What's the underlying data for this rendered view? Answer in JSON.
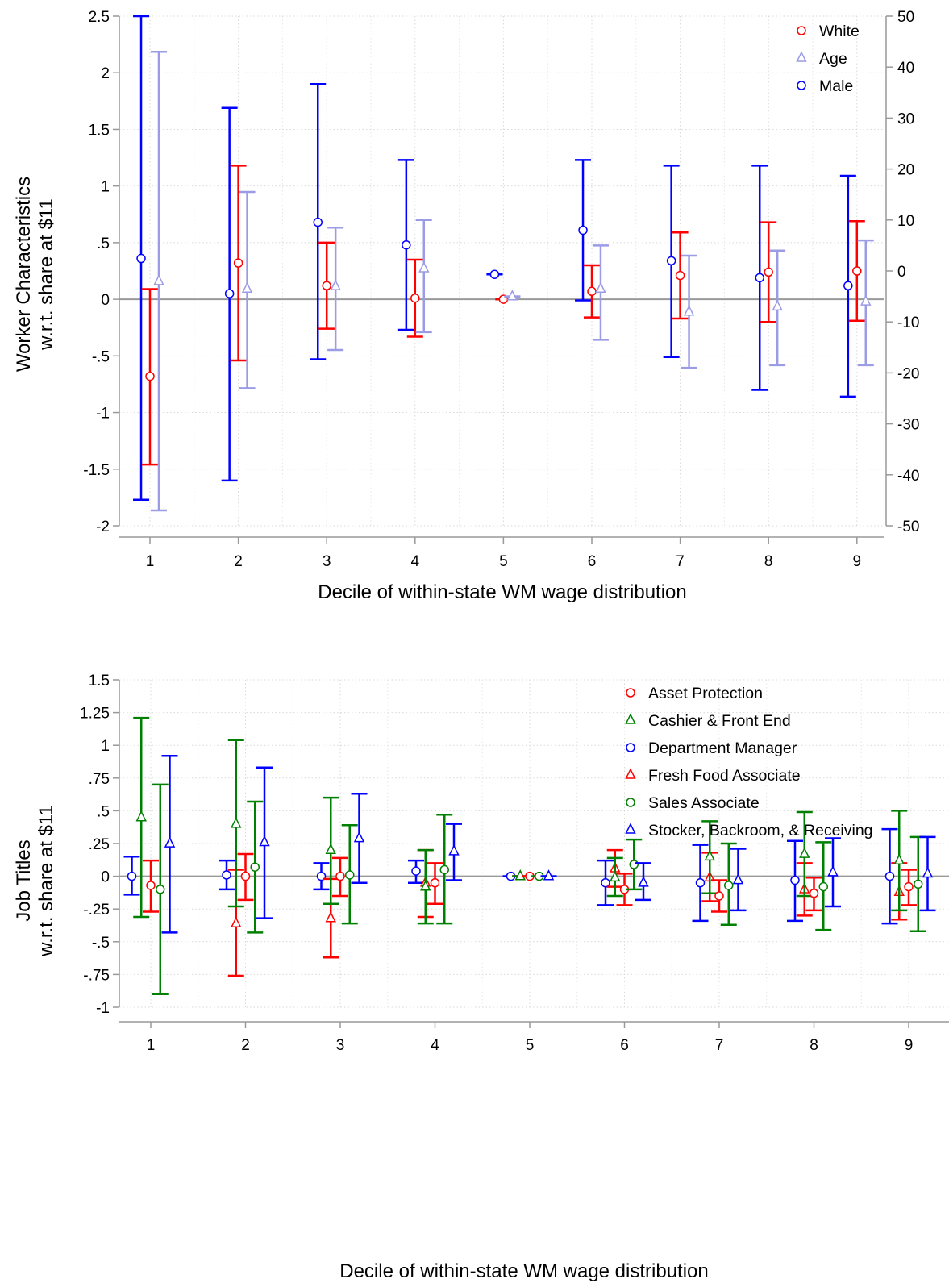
{
  "chart_data": [
    {
      "type": "scatter",
      "subtype": "coefficient plot with confidence intervals",
      "xlabel": "Decile of within-state WM wage distribution",
      "ylabel": "Worker Characteristics",
      "ylabel2": "w.r.t. share at $11",
      "x_ticks": [
        "1",
        "2",
        "3",
        "4",
        "5",
        "6",
        "7",
        "8",
        "9"
      ],
      "ylim": [
        -2,
        2.5
      ],
      "y_ticks": [
        2.5,
        2,
        1.5,
        1,
        0.5,
        0,
        -0.5,
        -1,
        -1.5,
        -2
      ],
      "y_tick_labels": [
        "2.5",
        "2",
        "1.5",
        "1",
        ".5",
        "0",
        "-.5",
        "-1",
        "-1.5",
        "-2"
      ],
      "y2lim": [
        -50,
        50
      ],
      "y2_ticks": [
        50,
        40,
        30,
        20,
        10,
        0,
        -10,
        -20,
        -30,
        -40,
        -50
      ],
      "y2_tick_labels": [
        "50",
        "40",
        "30",
        "20",
        "10",
        "0",
        "-10",
        "-20",
        "-30",
        "-40",
        "-50"
      ],
      "grid": true,
      "zero_line": true,
      "legend_position": "top-right",
      "series": [
        {
          "name": "Male",
          "color": "#0000ff",
          "marker": "circle",
          "axis": "left",
          "offset": -0.1,
          "estimate": [
            0.36,
            0.05,
            0.68,
            0.48,
            0.22,
            0.61,
            0.34,
            0.19,
            0.12
          ],
          "ci_low": [
            -1.77,
            -1.6,
            -0.53,
            -0.27,
            0.22,
            -0.01,
            -0.51,
            -0.8,
            -0.86
          ],
          "ci_high": [
            2.5,
            1.69,
            1.9,
            1.23,
            0.22,
            1.23,
            1.18,
            1.18,
            1.09
          ]
        },
        {
          "name": "White",
          "color": "#ff0000",
          "marker": "circle",
          "axis": "left",
          "offset": 0,
          "estimate": [
            -0.68,
            0.32,
            0.12,
            0.01,
            0.0,
            0.07,
            0.21,
            0.24,
            0.25
          ],
          "ci_low": [
            -1.46,
            -0.54,
            -0.26,
            -0.33,
            0.0,
            -0.16,
            -0.17,
            -0.2,
            -0.19
          ],
          "ci_high": [
            0.09,
            1.18,
            0.5,
            0.35,
            0.0,
            0.3,
            0.59,
            0.68,
            0.69
          ]
        },
        {
          "name": "Age",
          "color": "#9b9be6",
          "marker": "triangle",
          "axis": "right",
          "offset": 0.1,
          "estimate": [
            -2,
            -3.5,
            -3,
            0.5,
            -5,
            -3.5,
            -8,
            -7,
            -6
          ],
          "ci_low": [
            -47,
            -23,
            -15.5,
            -12,
            -5,
            -13.5,
            -19,
            -18.5,
            -18.5
          ],
          "ci_high": [
            43,
            15.5,
            8.5,
            10,
            -5,
            5,
            3,
            4,
            6
          ]
        }
      ]
    },
    {
      "type": "scatter",
      "subtype": "coefficient plot with confidence intervals",
      "xlabel": "Decile of within-state WM wage distribution",
      "ylabel": "Job Titles",
      "ylabel2": "w.r.t. share at $11",
      "x_ticks": [
        "1",
        "2",
        "3",
        "4",
        "5",
        "6",
        "7",
        "8",
        "9"
      ],
      "ylim": [
        -1,
        1.5
      ],
      "y_ticks": [
        1.5,
        1.25,
        1,
        0.75,
        0.5,
        0.25,
        0,
        -0.25,
        -0.5,
        -0.75,
        -1
      ],
      "y_tick_labels": [
        "1.5",
        "1.25",
        "1",
        ".75",
        ".5",
        ".25",
        "0",
        "-.25",
        "-.5",
        "-.75",
        "-1"
      ],
      "grid": true,
      "zero_line": true,
      "legend_position": "top-right",
      "series": [
        {
          "name": "Department Manager",
          "color": "#0000ff",
          "marker": "circle",
          "offset": -0.2,
          "estimate": [
            0.0,
            0.01,
            0.0,
            0.04,
            0.0,
            -0.05,
            -0.05,
            -0.03,
            0.0
          ],
          "ci_low": [
            -0.14,
            -0.1,
            -0.1,
            -0.05,
            0.0,
            -0.22,
            -0.34,
            -0.34,
            -0.36
          ],
          "ci_high": [
            0.15,
            0.12,
            0.1,
            0.12,
            0.0,
            0.12,
            0.24,
            0.27,
            0.36
          ]
        },
        {
          "name": "Fresh Food Associate",
          "color": "#ff0000",
          "marker": "triangle",
          "offset": -0.1,
          "estimate": [
            null,
            -0.36,
            -0.32,
            -0.05,
            0.0,
            0.06,
            -0.01,
            -0.1,
            -0.12
          ],
          "ci_low": [
            null,
            -0.76,
            -0.62,
            -0.31,
            0.0,
            -0.08,
            -0.19,
            -0.3,
            -0.33
          ],
          "ci_high": [
            null,
            0.05,
            -0.02,
            0.2,
            0.0,
            0.2,
            0.18,
            0.1,
            0.1
          ]
        },
        {
          "name": "Cashier & Front End",
          "color": "#008000",
          "marker": "triangle",
          "offset": -0.1,
          "estimate": [
            0.45,
            0.4,
            0.2,
            -0.08,
            0.0,
            -0.01,
            0.15,
            0.17,
            0.12
          ],
          "ci_low": [
            -0.31,
            -0.23,
            -0.21,
            -0.36,
            0.0,
            -0.15,
            -0.13,
            -0.15,
            -0.26
          ],
          "ci_high": [
            1.21,
            1.04,
            0.6,
            0.2,
            0.0,
            0.14,
            0.42,
            0.49,
            0.5
          ]
        },
        {
          "name": "Asset Protection",
          "color": "#ff0000",
          "marker": "circle",
          "offset": 0,
          "estimate": [
            -0.07,
            0.0,
            0.0,
            -0.05,
            0.0,
            -0.1,
            -0.15,
            -0.13,
            -0.08
          ],
          "ci_low": [
            -0.27,
            -0.18,
            -0.15,
            -0.21,
            0.0,
            -0.22,
            -0.27,
            -0.26,
            -0.22
          ],
          "ci_high": [
            0.12,
            0.17,
            0.14,
            0.1,
            0.0,
            0.02,
            -0.03,
            -0.01,
            0.05
          ]
        },
        {
          "name": "Sales Associate",
          "color": "#008000",
          "marker": "circle",
          "offset": 0.1,
          "estimate": [
            -0.1,
            0.07,
            0.01,
            0.05,
            0.0,
            0.09,
            -0.07,
            -0.08,
            -0.06
          ],
          "ci_low": [
            -0.9,
            -0.43,
            -0.36,
            -0.36,
            0.0,
            -0.1,
            -0.37,
            -0.41,
            -0.42
          ],
          "ci_high": [
            0.7,
            0.57,
            0.39,
            0.47,
            0.0,
            0.28,
            0.25,
            0.26,
            0.3
          ]
        },
        {
          "name": "Stocker, Backroom, & Receiving",
          "color": "#0000ff",
          "marker": "triangle",
          "offset": 0.2,
          "estimate": [
            0.25,
            0.26,
            0.29,
            0.19,
            0.0,
            -0.05,
            -0.03,
            0.03,
            0.02
          ],
          "ci_low": [
            -0.43,
            -0.32,
            -0.05,
            -0.03,
            0.0,
            -0.18,
            -0.26,
            -0.23,
            -0.26
          ],
          "ci_high": [
            0.92,
            0.83,
            0.63,
            0.4,
            0.0,
            0.1,
            0.21,
            0.29,
            0.3
          ]
        }
      ],
      "legend_order": [
        "Asset Protection",
        "Cashier & Front End",
        "Department Manager",
        "Fresh Food Associate",
        "Sales Associate",
        "Stocker, Backroom, & Receiving"
      ]
    }
  ]
}
